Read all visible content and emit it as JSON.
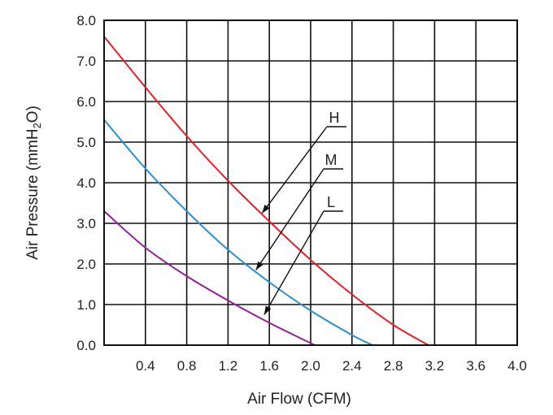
{
  "chart_data": {
    "type": "line",
    "xlabel": "Air Flow (CFM)",
    "ylabel_main": "Air Pressure (mmH",
    "ylabel_sub": "2",
    "ylabel_end": "O)",
    "xlim": [
      0,
      4.0
    ],
    "ylim": [
      0,
      8.0
    ],
    "grid": true,
    "x_ticks": [
      "0.4",
      "0.8",
      "1.2",
      "1.6",
      "2.0",
      "2.4",
      "2.8",
      "3.2",
      "3.6",
      "4.0"
    ],
    "y_ticks": [
      "0.0",
      "1.0",
      "2.0",
      "3.0",
      "4.0",
      "5.0",
      "6.0",
      "7.0",
      "8.0"
    ],
    "series": [
      {
        "name": "H",
        "color": "#e8202a",
        "x": [
          0,
          0.4,
          0.8,
          1.2,
          1.6,
          2.0,
          2.4,
          2.8,
          3.14
        ],
        "y": [
          7.6,
          6.35,
          5.15,
          4.05,
          3.05,
          2.1,
          1.25,
          0.5,
          0
        ]
      },
      {
        "name": "M",
        "color": "#2a8fd0",
        "x": [
          0,
          0.4,
          0.8,
          1.2,
          1.6,
          2.0,
          2.4,
          2.6
        ],
        "y": [
          5.55,
          4.35,
          3.3,
          2.35,
          1.55,
          0.85,
          0.25,
          0
        ]
      },
      {
        "name": "L",
        "color": "#93209a",
        "x": [
          0,
          0.4,
          0.8,
          1.2,
          1.6,
          2.04
        ],
        "y": [
          3.3,
          2.4,
          1.7,
          1.1,
          0.55,
          0
        ]
      }
    ],
    "annotations": [
      {
        "label": "H",
        "target": [
          1.53,
          3.25
        ]
      },
      {
        "label": "M",
        "target": [
          1.47,
          1.85
        ]
      },
      {
        "label": "L",
        "target": [
          1.55,
          0.75
        ]
      }
    ]
  }
}
